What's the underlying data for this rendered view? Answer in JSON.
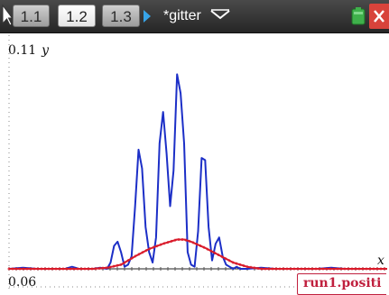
{
  "topbar": {
    "tabs": [
      {
        "label": "1.1",
        "active": false
      },
      {
        "label": "1.2",
        "active": true
      },
      {
        "label": "1.3",
        "active": false
      }
    ],
    "document_title": "*gitter",
    "icons": [
      "cursor-arrow-icon",
      "tab-scroll-arrow-icon",
      "document-menu-chevron-icon",
      "battery-icon",
      "close-icon"
    ]
  },
  "graph": {
    "y_max_label": "0.11",
    "y_var_label": "y",
    "x_min_label": "0.06",
    "x_var_label": "x",
    "function_label": "run1.positi"
  },
  "colors": {
    "topbar_bg": "#333333",
    "active_tab": "#ffffff",
    "tab_arrow": "#37a4e8",
    "blue_plot": "#1c2fc7",
    "red_plot": "#d91a2a",
    "close_button": "#d8433b",
    "battery": "#3fb04b"
  },
  "chart_data": {
    "type": "line",
    "title": "",
    "xlabel": "x",
    "ylabel": "y",
    "ylim": [
      0,
      0.11
    ],
    "xlim": [
      0.06,
      0.6
    ],
    "grid": false,
    "legend": "none",
    "series": [
      {
        "color": "#1c2fc7",
        "x": [
          0.06,
          0.08,
          0.1,
          0.12,
          0.14,
          0.15,
          0.16,
          0.17,
          0.18,
          0.19,
          0.2,
          0.205,
          0.21,
          0.215,
          0.22,
          0.225,
          0.23,
          0.235,
          0.24,
          0.245,
          0.25,
          0.255,
          0.26,
          0.265,
          0.27,
          0.275,
          0.28,
          0.285,
          0.29,
          0.295,
          0.3,
          0.305,
          0.31,
          0.315,
          0.32,
          0.325,
          0.33,
          0.335,
          0.34,
          0.345,
          0.35,
          0.355,
          0.36,
          0.365,
          0.37,
          0.375,
          0.38,
          0.385,
          0.39,
          0.4,
          0.42,
          0.44,
          0.46,
          0.48,
          0.5,
          0.52,
          0.54,
          0.56,
          0.58,
          0.6
        ],
        "y": [
          0.0,
          0.0005,
          0.0,
          0.0,
          0.0,
          0.001,
          0.0,
          0.0,
          0.0,
          0.0005,
          0.0,
          0.003,
          0.011,
          0.013,
          0.008,
          0.001,
          0.002,
          0.006,
          0.03,
          0.057,
          0.048,
          0.02,
          0.008,
          0.003,
          0.015,
          0.06,
          0.075,
          0.055,
          0.03,
          0.047,
          0.093,
          0.084,
          0.06,
          0.008,
          0.002,
          0.001,
          0.018,
          0.053,
          0.052,
          0.02,
          0.004,
          0.012,
          0.015,
          0.006,
          0.002,
          0.001,
          0.0,
          0.001,
          0.0,
          0.0,
          0.0005,
          0.0,
          0.0,
          0.0,
          0.0,
          0.0005,
          0.0,
          0.0,
          0.0,
          0.0
        ]
      },
      {
        "color": "#d91a2a",
        "x": [
          0.06,
          0.1,
          0.14,
          0.18,
          0.2,
          0.22,
          0.24,
          0.26,
          0.28,
          0.3,
          0.31,
          0.32,
          0.34,
          0.36,
          0.38,
          0.4,
          0.42,
          0.46,
          0.5,
          0.54,
          0.6
        ],
        "y": [
          0.0,
          0.0,
          0.0,
          0.0,
          0.0005,
          0.002,
          0.006,
          0.0095,
          0.012,
          0.014,
          0.014,
          0.013,
          0.01,
          0.0065,
          0.003,
          0.001,
          0.0,
          0.0,
          0.0,
          0.0,
          0.0
        ]
      }
    ]
  }
}
